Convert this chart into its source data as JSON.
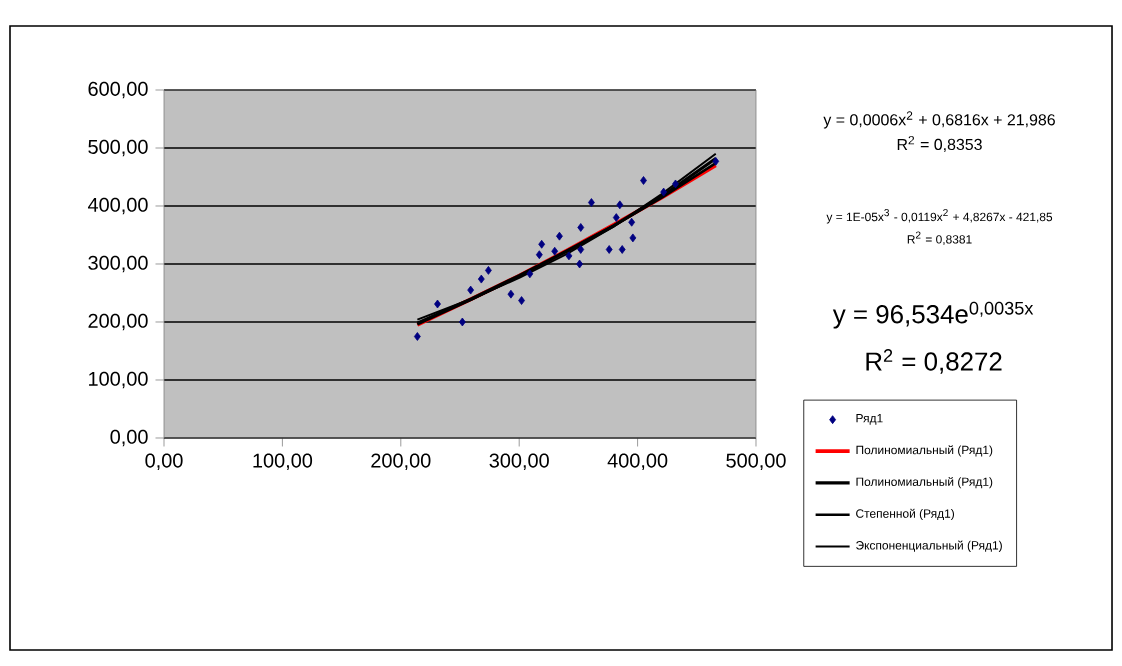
{
  "chart_data": {
    "type": "scatter",
    "xlim": [
      0,
      500
    ],
    "xticks": [
      {
        "value": 0,
        "label": "0,00"
      },
      {
        "value": 100,
        "label": "100,00"
      },
      {
        "value": 200,
        "label": "200,00"
      },
      {
        "value": 300,
        "label": "300,00"
      },
      {
        "value": 400,
        "label": "400,00"
      },
      {
        "value": 500,
        "label": "500,00"
      }
    ],
    "ylim": [
      0,
      600
    ],
    "yticks": [
      {
        "value": 0,
        "label": "0,00"
      },
      {
        "value": 100,
        "label": "100,00"
      },
      {
        "value": 200,
        "label": "200,00"
      },
      {
        "value": 300,
        "label": "300,00"
      },
      {
        "value": 400,
        "label": "400,00"
      },
      {
        "value": 500,
        "label": "500,00"
      },
      {
        "value": 600,
        "label": "600,00"
      }
    ],
    "grid": "y",
    "legend": "bottom right",
    "series": [
      {
        "name": "Ряд1",
        "marker": "diamond",
        "color": "#000080",
        "x": [
          214,
          231,
          252,
          259,
          268,
          274,
          293,
          302,
          309,
          317,
          319,
          330,
          334,
          342,
          351,
          352,
          352,
          361,
          376,
          382,
          385,
          387,
          395,
          396,
          405,
          422,
          432,
          466
        ],
        "values": [
          175,
          231,
          200,
          255,
          274,
          289,
          248,
          237,
          283,
          316,
          334,
          322,
          348,
          314,
          300,
          363,
          325,
          406,
          325,
          380,
          402,
          325,
          372,
          345,
          444,
          424,
          438,
          477
        ]
      },
      {
        "name": "Полиномиальный (Ряд1)",
        "type": "line",
        "marker": "none",
        "color": "#ff0000",
        "x": [
          214,
          260,
          300,
          340,
          380,
          420,
          466
        ],
        "values": [
          195,
          240,
          280,
          323,
          368,
          414,
          470
        ]
      },
      {
        "name": "Полиномиальный (Ряд1)",
        "type": "line",
        "marker": "none",
        "color": "#000000",
        "x": [
          214,
          260,
          300,
          340,
          380,
          420,
          466
        ],
        "values": [
          198,
          240,
          280,
          322,
          366,
          416,
          482
        ]
      },
      {
        "name": "Степенной (Ряд1)",
        "type": "line",
        "marker": "none",
        "color": "#000000",
        "x": [
          214,
          260,
          300,
          340,
          380,
          420,
          466
        ],
        "values": [
          196,
          239,
          279,
          322,
          366,
          414,
          474
        ]
      },
      {
        "name": "Экспоненциальный (Ряд1)",
        "type": "line",
        "marker": "none",
        "color": "#000000",
        "x": [
          214,
          260,
          300,
          340,
          380,
          420,
          466
        ],
        "values": [
          204,
          240,
          276,
          317,
          365,
          420,
          490
        ]
      }
    ],
    "annotations": [
      "y = 0,0006x$^{2}$ + 0,6816x + 21,986",
      "R$^{2}$ = 0,8353",
      "y = 1E-05x$^{3}$ - 0,0119x$^{2}$ + 4,8267x - 421,85",
      "R$^{2}$ = 0,8381",
      "y = 96,534e$^{0,0035x}$",
      "R$^{2}$ = 0,8272"
    ]
  }
}
